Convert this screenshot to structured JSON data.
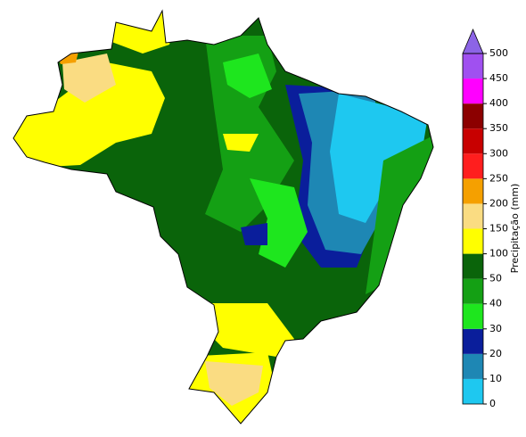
{
  "colorbar": {
    "label": "Precipitação (mm)",
    "ticks": [
      0,
      10,
      20,
      30,
      40,
      50,
      100,
      150,
      200,
      250,
      300,
      350,
      400,
      450,
      500
    ],
    "colors": [
      "#1ec8f0",
      "#1e87b4",
      "#0a1e9b",
      "#1ee61e",
      "#14a014",
      "#0a640a",
      "#ffff00",
      "#fadc82",
      "#f5a000",
      "#ff1e1e",
      "#c80000",
      "#8c0000",
      "#ff00ff",
      "#a050f0"
    ],
    "over_color": "#8c64e6"
  }
}
